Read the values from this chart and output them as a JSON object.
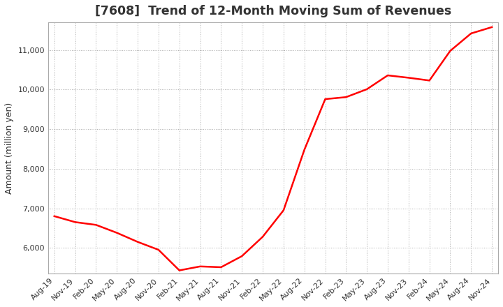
{
  "title": "[7608]  Trend of 12-Month Moving Sum of Revenues",
  "ylabel": "Amount (million yen)",
  "background_color": "#ffffff",
  "plot_bg_color": "#ffffff",
  "line_color": "#ff0000",
  "line_width": 1.8,
  "grid_color": "#999999",
  "x_labels": [
    "Aug-19",
    "Nov-19",
    "Feb-20",
    "May-20",
    "Aug-20",
    "Nov-20",
    "Feb-21",
    "May-21",
    "Aug-21",
    "Nov-21",
    "Feb-22",
    "May-22",
    "Aug-22",
    "Nov-22",
    "Feb-23",
    "May-23",
    "Aug-23",
    "Nov-23",
    "Feb-24",
    "May-24",
    "Aug-24",
    "Nov-24"
  ],
  "values": [
    6800,
    6650,
    6580,
    6380,
    6150,
    5950,
    5430,
    5530,
    5510,
    5790,
    6280,
    6950,
    8480,
    9760,
    9810,
    10010,
    10360,
    10300,
    10230,
    10980,
    11420,
    11580
  ],
  "ylim_min": 5350,
  "ylim_max": 11700,
  "yticks": [
    6000,
    7000,
    8000,
    9000,
    10000,
    11000
  ],
  "title_fontsize": 12.5,
  "label_fontsize": 9,
  "tick_fontsize": 8,
  "title_color": "#333333"
}
